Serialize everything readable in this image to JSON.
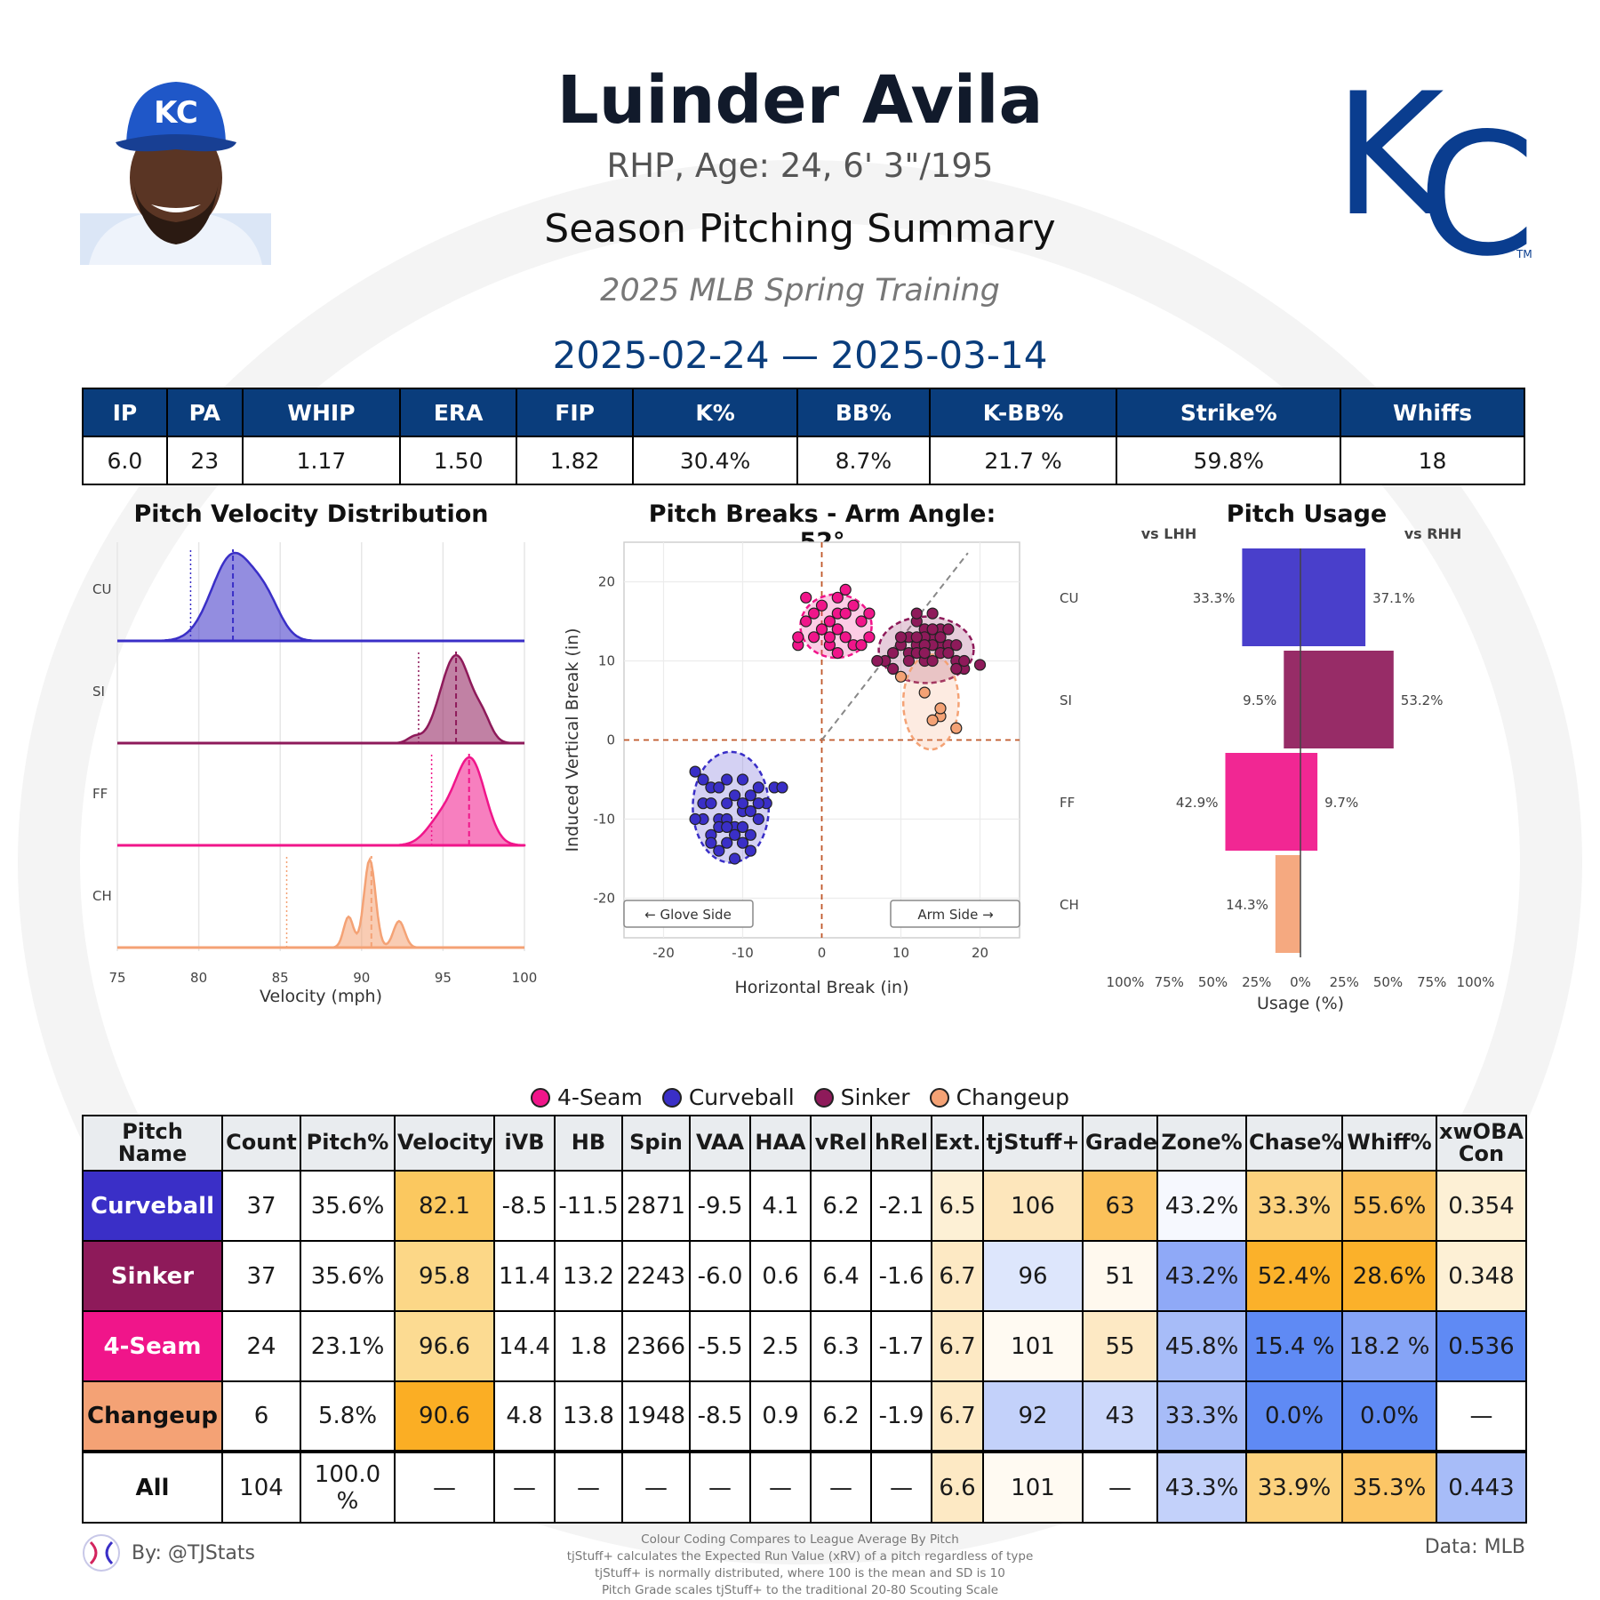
{
  "header": {
    "name": "Luinder Avila",
    "bio": "RHP, Age: 24, 6' 3\"/195",
    "section_title": "Season Pitching Summary",
    "season": "2025 MLB Spring Training",
    "date_range": "2025-02-24 — 2025-03-14",
    "team_logo": "KC"
  },
  "summary": {
    "headers": [
      "IP",
      "PA",
      "WHIP",
      "ERA",
      "FIP",
      "K%",
      "BB%",
      "K-BB%",
      "Strike%",
      "Whiffs"
    ],
    "values": [
      "6.0",
      "23",
      "1.17",
      "1.50",
      "1.82",
      "30.4%",
      "8.7%",
      "21.7 %",
      "59.8%",
      "18"
    ]
  },
  "colors": {
    "CU": "#3a2fc7",
    "SI": "#8e1a5a",
    "FF": "#f0158a",
    "CH": "#f4a275",
    "header_blue": "#0a3d7c"
  },
  "chart_data": [
    {
      "type": "area",
      "title": "Pitch Velocity Distribution",
      "xlabel": "Velocity (mph)",
      "xlim": [
        75,
        100
      ],
      "x_ticks": [
        "75",
        "80",
        "85",
        "90",
        "95",
        "100"
      ],
      "series": [
        {
          "name": "CU",
          "mean": 82.1,
          "league_mean": 79.5,
          "peaks": [
            [
              82.1,
              1.0,
              1.3
            ],
            [
              84.2,
              0.35,
              0.9
            ]
          ]
        },
        {
          "name": "SI",
          "mean": 95.8,
          "league_mean": 93.5,
          "peaks": [
            [
              95.8,
              1.0,
              0.95
            ],
            [
              97.5,
              0.18,
              0.5
            ],
            [
              93.2,
              0.06,
              0.4
            ]
          ]
        },
        {
          "name": "FF",
          "mean": 96.6,
          "league_mean": 94.3,
          "peaks": [
            [
              96.7,
              1.0,
              0.9
            ],
            [
              94.9,
              0.3,
              0.9
            ]
          ]
        },
        {
          "name": "CH",
          "mean": 90.6,
          "league_mean": 85.4,
          "peaks": [
            [
              90.5,
              1.0,
              0.35
            ],
            [
              89.2,
              0.35,
              0.3
            ],
            [
              92.3,
              0.3,
              0.35
            ]
          ]
        }
      ]
    },
    {
      "type": "scatter",
      "title": "Pitch Breaks - Arm Angle: 52°",
      "xlabel": "Horizontal Break (in)",
      "ylabel": "Induced Vertical Break (in)",
      "xlim": [
        -25,
        25
      ],
      "ylim": [
        -25,
        25
      ],
      "x_ticks": [
        "-20",
        "-10",
        "0",
        "10",
        "20"
      ],
      "y_ticks": [
        "20",
        "10",
        "0",
        "-10",
        "-20"
      ],
      "glove_side_label": "← Glove Side",
      "arm_side_label": "Arm Side →",
      "arm_angle": 52,
      "series": [
        {
          "name": "FF",
          "center": [
            1.8,
            14.4
          ],
          "spread": [
            4.5,
            4.0
          ],
          "points": [
            [
              -2,
              18
            ],
            [
              0,
              17
            ],
            [
              1,
              15
            ],
            [
              2,
              16
            ],
            [
              3,
              19
            ],
            [
              4,
              17
            ],
            [
              2,
              14
            ],
            [
              -1,
              13
            ],
            [
              3,
              13
            ],
            [
              5,
              15
            ],
            [
              6,
              16
            ],
            [
              -3,
              12
            ],
            [
              -2,
              15
            ],
            [
              1,
              12
            ],
            [
              4,
              12
            ],
            [
              2,
              11
            ],
            [
              0,
              14
            ],
            [
              3,
              16
            ],
            [
              -1,
              16
            ],
            [
              5,
              12
            ],
            [
              6,
              13
            ],
            [
              -3,
              13
            ],
            [
              2,
              18
            ],
            [
              1,
              13
            ]
          ]
        },
        {
          "name": "SI",
          "center": [
            13.2,
            11.4
          ],
          "spread": [
            6.0,
            4.2
          ],
          "points": [
            [
              12,
              15
            ],
            [
              13,
              14
            ],
            [
              14,
              13
            ],
            [
              15,
              12
            ],
            [
              11,
              11
            ],
            [
              12,
              12
            ],
            [
              13,
              13
            ],
            [
              14,
              12
            ],
            [
              15,
              11
            ],
            [
              16,
              12
            ],
            [
              17,
              10
            ],
            [
              18,
              9
            ],
            [
              20,
              9.5
            ],
            [
              11,
              10
            ],
            [
              10,
              12
            ],
            [
              8,
              10
            ],
            [
              7,
              10
            ],
            [
              9,
              11
            ],
            [
              12,
              16
            ],
            [
              14,
              16
            ],
            [
              15,
              14
            ],
            [
              16,
              11
            ],
            [
              17,
              9
            ],
            [
              18,
              10
            ],
            [
              13,
              10
            ],
            [
              14,
              10
            ],
            [
              12,
              11
            ],
            [
              13,
              12
            ],
            [
              14,
              14
            ],
            [
              15,
              13
            ],
            [
              16,
              14
            ],
            [
              11,
              13
            ],
            [
              10,
              13
            ],
            [
              9,
              9
            ],
            [
              13,
              11
            ],
            [
              12,
              13
            ],
            [
              17,
              12
            ]
          ]
        },
        {
          "name": "CH",
          "center": [
            13.8,
            4.8
          ],
          "spread": [
            3.5,
            6.0
          ],
          "points": [
            [
              10,
              8
            ],
            [
              13,
              6
            ],
            [
              15,
              3
            ],
            [
              14,
              2.5
            ],
            [
              15,
              4
            ],
            [
              17,
              1.5
            ]
          ]
        },
        {
          "name": "CU",
          "center": [
            -11.5,
            -8.5
          ],
          "spread": [
            4.8,
            7.0
          ],
          "points": [
            [
              -16,
              -4
            ],
            [
              -15,
              -8
            ],
            [
              -14,
              -6
            ],
            [
              -13,
              -10
            ],
            [
              -12,
              -8
            ],
            [
              -11,
              -11
            ],
            [
              -10,
              -9
            ],
            [
              -9,
              -7
            ],
            [
              -8,
              -10
            ],
            [
              -12,
              -13
            ],
            [
              -11,
              -15
            ],
            [
              -10,
              -13
            ],
            [
              -9,
              -12
            ],
            [
              -13,
              -14
            ],
            [
              -14,
              -12
            ],
            [
              -15,
              -10
            ],
            [
              -12,
              -5
            ],
            [
              -10,
              -5
            ],
            [
              -8,
              -6
            ],
            [
              -7,
              -8
            ],
            [
              -6,
              -6
            ],
            [
              -5,
              -6
            ],
            [
              -16,
              -10
            ],
            [
              -14,
              -8
            ],
            [
              -13,
              -6
            ],
            [
              -11,
              -7
            ],
            [
              -10,
              -11
            ],
            [
              -9,
              -9
            ],
            [
              -12,
              -10
            ],
            [
              -13,
              -11
            ],
            [
              -11,
              -12
            ],
            [
              -10,
              -8
            ],
            [
              -8,
              -8
            ],
            [
              -15,
              -5
            ],
            [
              -14,
              -13
            ],
            [
              -12,
              -11
            ],
            [
              -9,
              -14
            ]
          ]
        }
      ]
    },
    {
      "type": "bar",
      "title": "Pitch Usage",
      "xlabel": "Usage (%)",
      "left_label": "vs LHH",
      "right_label": "vs RHH",
      "categories": [
        "CU",
        "SI",
        "FF",
        "CH"
      ],
      "x_ticks": [
        "100%",
        "75%",
        "50%",
        "25%",
        "0%",
        "25%",
        "50%",
        "75%",
        "100%"
      ],
      "series": [
        {
          "name": "vs LHH",
          "values": [
            33.3,
            9.5,
            42.9,
            14.3
          ],
          "labels": [
            "33.3%",
            "9.5%",
            "42.9%",
            "14.3%"
          ]
        },
        {
          "name": "vs RHH",
          "values": [
            37.1,
            53.2,
            9.7,
            0
          ],
          "labels": [
            "37.1%",
            "53.2%",
            "9.7%",
            ""
          ]
        }
      ]
    }
  ],
  "legend": [
    {
      "name": "4-Seam",
      "color": "#f0158a"
    },
    {
      "name": "Curveball",
      "color": "#3a2fc7"
    },
    {
      "name": "Sinker",
      "color": "#8e1a5a"
    },
    {
      "name": "Changeup",
      "color": "#f4a275"
    }
  ],
  "pitch_table": {
    "headers": [
      "Pitch Name",
      "Count",
      "Pitch%",
      "Velocity",
      "iVB",
      "HB",
      "Spin",
      "VAA",
      "HAA",
      "vRel",
      "hRel",
      "Ext.",
      "tjStuff+",
      "Grade",
      "Zone%",
      "Chase%",
      "Whiff%",
      "xwOBA Con"
    ],
    "rows": [
      {
        "name": "Curveball",
        "color": "#3a2fc7",
        "text_color": "#ffffff",
        "cells": [
          "37",
          "35.6%",
          "82.1",
          "-8.5",
          "-11.5",
          "2871",
          "-9.5",
          "4.1",
          "6.2",
          "-2.1",
          "6.5",
          "106",
          "63",
          "43.2%",
          "33.3%",
          "55.6%",
          "0.354"
        ],
        "bg": [
          "#ffffff",
          "#ffffff",
          "#fbc85f",
          "#ffffff",
          "#ffffff",
          "#ffffff",
          "#ffffff",
          "#ffffff",
          "#ffffff",
          "#ffffff",
          "#fdf0d5",
          "#fde6bb",
          "#fbc15a",
          "#f6f8fe",
          "#fcd27e",
          "#fbc15a",
          "#fdf0d5"
        ]
      },
      {
        "name": "Sinker",
        "color": "#8e1a5a",
        "text_color": "#ffffff",
        "cells": [
          "37",
          "35.6%",
          "95.8",
          "11.4",
          "13.2",
          "2243",
          "-6.0",
          "0.6",
          "6.4",
          "-1.6",
          "6.7",
          "96",
          "51",
          "43.2%",
          "52.4%",
          "28.6%",
          "0.348"
        ],
        "bg": [
          "#ffffff",
          "#ffffff",
          "#fcd787",
          "#ffffff",
          "#ffffff",
          "#ffffff",
          "#ffffff",
          "#ffffff",
          "#ffffff",
          "#ffffff",
          "#fde9c4",
          "#dde6fc",
          "#fff9ee",
          "#8fa9f7",
          "#fbb12a",
          "#fbb12a",
          "#fdf0d5"
        ]
      },
      {
        "name": "4-Seam",
        "color": "#f0158a",
        "text_color": "#ffffff",
        "cells": [
          "24",
          "23.1%",
          "96.6",
          "14.4",
          "1.8",
          "2366",
          "-5.5",
          "2.5",
          "6.3",
          "-1.7",
          "6.7",
          "101",
          "55",
          "45.8%",
          "15.4 %",
          "18.2 %",
          "0.536"
        ],
        "bg": [
          "#ffffff",
          "#ffffff",
          "#fcdb92",
          "#ffffff",
          "#ffffff",
          "#ffffff",
          "#ffffff",
          "#ffffff",
          "#ffffff",
          "#ffffff",
          "#fde9c4",
          "#fffaf2",
          "#fde9c4",
          "#a7bcf8",
          "#5f8af4",
          "#86a4f6",
          "#5f8af4"
        ]
      },
      {
        "name": "Changeup",
        "color": "#f4a275",
        "text_color": "#111111",
        "cells": [
          "6",
          "5.8%",
          "90.6",
          "4.8",
          "13.8",
          "1948",
          "-8.5",
          "0.9",
          "6.2",
          "-1.9",
          "6.7",
          "92",
          "43",
          "33.3%",
          "0.0%",
          "0.0%",
          "—"
        ],
        "bg": [
          "#ffffff",
          "#ffffff",
          "#fbae24",
          "#ffffff",
          "#ffffff",
          "#ffffff",
          "#ffffff",
          "#ffffff",
          "#ffffff",
          "#ffffff",
          "#fde9c4",
          "#c3d1fa",
          "#ccd8fb",
          "#a7bcf8",
          "#5f8af4",
          "#5f8af4",
          "#ffffff"
        ]
      },
      {
        "name": "All",
        "color": "#ffffff",
        "text_color": "#111111",
        "cells": [
          "104",
          "100.0 %",
          "—",
          "—",
          "—",
          "—",
          "—",
          "—",
          "—",
          "—",
          "6.6",
          "101",
          "—",
          "43.3%",
          "33.9%",
          "35.3%",
          "0.443"
        ],
        "bg": [
          "#ffffff",
          "#ffffff",
          "#ffffff",
          "#ffffff",
          "#ffffff",
          "#ffffff",
          "#ffffff",
          "#ffffff",
          "#ffffff",
          "#ffffff",
          "#fde9c4",
          "#fffaf2",
          "#ffffff",
          "#c3d1fa",
          "#fcd27e",
          "#fcc666",
          "#a7bcf8"
        ]
      }
    ]
  },
  "footer": {
    "by": "By: @TJStats",
    "data_source": "Data: MLB",
    "notes": [
      "Colour Coding Compares to League Average By Pitch",
      "tjStuff+ calculates the Expected Run Value (xRV) of a pitch regardless of type",
      "tjStuff+ is normally distributed, where 100 is the mean and SD is 10",
      "Pitch Grade scales tjStuff+ to the traditional 20-80 Scouting Scale"
    ]
  }
}
